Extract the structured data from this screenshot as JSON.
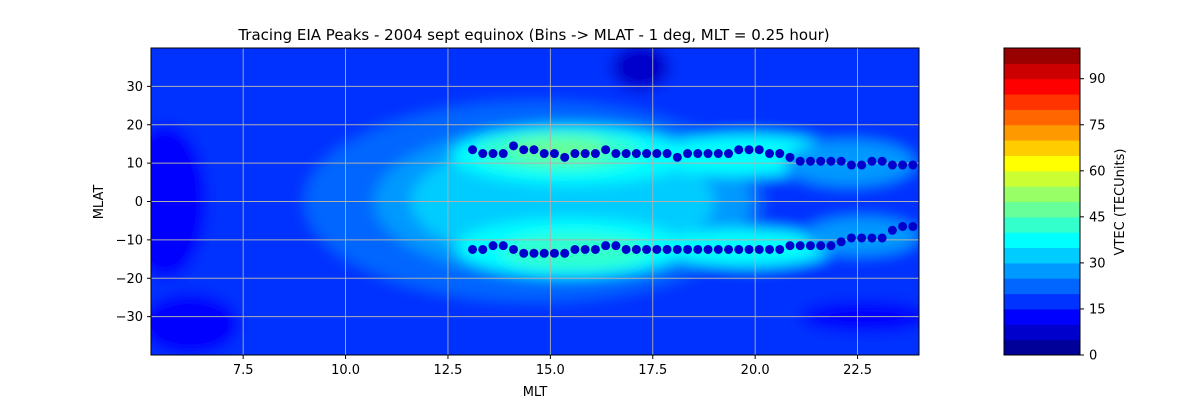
{
  "chart_data": {
    "type": "heatmap",
    "title": "Tracing EIA Peaks - 2004 sept equinox (Bins -> MLAT - 1 deg, MLT = 0.25 hour)",
    "xlabel": "MLT",
    "ylabel": "MLAT",
    "xlim": [
      5.25,
      24.0
    ],
    "ylim": [
      -40,
      40
    ],
    "xticks": [
      "7.5",
      "10.0",
      "12.5",
      "15.0",
      "17.5",
      "20.0",
      "22.5"
    ],
    "xtick_values": [
      7.5,
      10.0,
      12.5,
      15.0,
      17.5,
      20.0,
      22.5
    ],
    "yticks": [
      "30",
      "20",
      "10",
      "0",
      "−10",
      "−20",
      "−30"
    ],
    "ytick_values": [
      30,
      20,
      10,
      0,
      -10,
      -20,
      -30
    ],
    "grid": true,
    "colormap": "jet",
    "colorbar": {
      "label": "VTEC (TECUnits)",
      "range": [
        0,
        100
      ],
      "levels": 20,
      "ticks": [
        "0",
        "15",
        "30",
        "45",
        "60",
        "75",
        "90"
      ],
      "tick_values": [
        0,
        15,
        30,
        45,
        60,
        75,
        90
      ]
    },
    "peak_marker_color": "#0000cd",
    "peaks_north": {
      "mlt": [
        13.1,
        13.35,
        13.6,
        13.85,
        14.1,
        14.35,
        14.6,
        14.85,
        15.1,
        15.35,
        15.6,
        15.85,
        16.1,
        16.35,
        16.6,
        16.85,
        17.1,
        17.35,
        17.6,
        17.85,
        18.1,
        18.35,
        18.6,
        18.85,
        19.1,
        19.35,
        19.6,
        19.85,
        20.1,
        20.35,
        20.6,
        20.85,
        21.1,
        21.35,
        21.6,
        21.85,
        22.1,
        22.35,
        22.6,
        22.85,
        23.1,
        23.35,
        23.6,
        23.85
      ],
      "mlat": [
        13.5,
        12.5,
        12.5,
        12.5,
        14.5,
        13.5,
        13.5,
        12.5,
        12.5,
        11.5,
        12.5,
        12.5,
        12.5,
        13.5,
        12.5,
        12.5,
        12.5,
        12.5,
        12.5,
        12.5,
        11.5,
        12.5,
        12.5,
        12.5,
        12.5,
        12.5,
        13.5,
        13.5,
        13.5,
        12.5,
        12.5,
        11.5,
        10.5,
        10.5,
        10.5,
        10.5,
        10.5,
        9.5,
        9.5,
        10.5,
        10.5,
        9.5,
        9.5,
        9.5
      ]
    },
    "peaks_south": {
      "mlt": [
        13.1,
        13.35,
        13.6,
        13.85,
        14.1,
        14.35,
        14.6,
        14.85,
        15.1,
        15.35,
        15.6,
        15.85,
        16.1,
        16.35,
        16.6,
        16.85,
        17.1,
        17.35,
        17.6,
        17.85,
        18.1,
        18.35,
        18.6,
        18.85,
        19.1,
        19.35,
        19.6,
        19.85,
        20.1,
        20.35,
        20.6,
        20.85,
        21.1,
        21.35,
        21.6,
        21.85,
        22.1,
        22.35,
        22.6,
        22.85,
        23.1,
        23.35,
        23.6,
        23.85
      ],
      "mlat": [
        -12.5,
        -12.5,
        -11.5,
        -11.5,
        -12.5,
        -13.5,
        -13.5,
        -13.5,
        -13.5,
        -13.5,
        -12.5,
        -12.5,
        -12.5,
        -11.5,
        -11.5,
        -12.5,
        -12.5,
        -12.5,
        -12.5,
        -12.5,
        -12.5,
        -12.5,
        -12.5,
        -12.5,
        -12.5,
        -12.5,
        -12.5,
        -12.5,
        -12.5,
        -12.5,
        -12.5,
        -11.5,
        -11.5,
        -11.5,
        -11.5,
        -11.5,
        -10.5,
        -9.5,
        -9.5,
        -9.5,
        -9.5,
        -7.5,
        -6.5,
        -6.5
      ]
    }
  }
}
